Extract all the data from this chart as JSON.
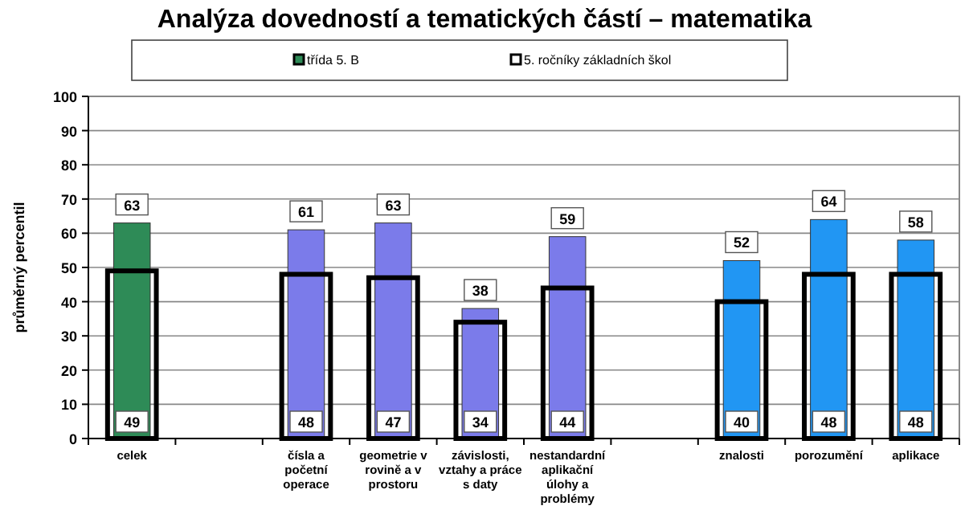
{
  "chart_data": {
    "type": "bar",
    "title": "Analýza dovedností a tematických částí – matematika",
    "ylabel": "průměrný percentil",
    "categories": [
      "celek",
      null,
      "čísla a početní operace",
      "geometrie v rovině a v prostoru",
      "závislosti, vztahy a práce s daty",
      "nestandardní aplikační úlohy a problémy",
      null,
      "znalosti",
      "porozumění",
      "aplikace"
    ],
    "series": [
      {
        "name": "třída  5. B",
        "colors": [
          "#2e8b57",
          null,
          "#7b7bea",
          "#7b7bea",
          "#7b7bea",
          "#7b7bea",
          null,
          "#2196f3",
          "#2196f3",
          "#2196f3"
        ],
        "values": [
          63,
          null,
          61,
          63,
          38,
          59,
          null,
          52,
          64,
          58
        ]
      },
      {
        "name": "5. ročníky základních škol",
        "color": "#000000",
        "values": [
          49,
          null,
          48,
          47,
          34,
          44,
          null,
          40,
          48,
          48
        ]
      }
    ],
    "ylim": [
      0,
      100
    ],
    "yticks": [
      0,
      10,
      20,
      30,
      40,
      50,
      60,
      70,
      80,
      90,
      100
    ],
    "grid": "y",
    "legend": "top",
    "data_labels": true
  }
}
